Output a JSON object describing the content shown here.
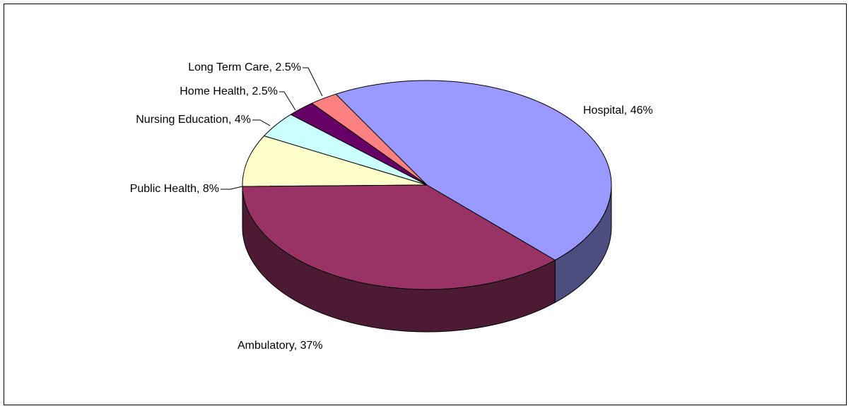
{
  "chart_data": {
    "type": "pie3d",
    "values": [
      46,
      2.5,
      2.5,
      4,
      8,
      37
    ],
    "value_labels": [
      "Hospital, 46%",
      "Long Term Care, 2.5%",
      "Home Health, 2.5%",
      "Nursing Education, 4%",
      "Public Health, 8%",
      "Ambulatory, 37%"
    ],
    "colors": [
      "#9999ff",
      "#ff8080",
      "#660066",
      "#ccffff",
      "#ffffcc",
      "#993366"
    ]
  }
}
